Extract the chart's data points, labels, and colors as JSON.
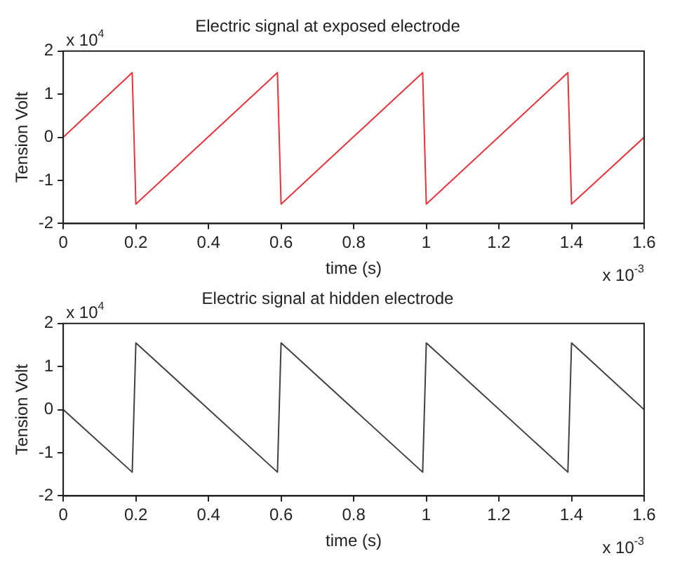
{
  "chart_data": [
    {
      "type": "line",
      "title": "Electric signal at exposed electrode",
      "xlabel": "time (s)",
      "ylabel": "Tension Volt",
      "annotations": [
        "x 10$^{4}$",
        "x 10$^{-3}$"
      ],
      "x": [
        0,
        0.19,
        0.2,
        0.59,
        0.6,
        0.99,
        1.0,
        1.39,
        1.4,
        1.6
      ],
      "series": [
        {
          "color": "#e8323c",
          "values": [
            0,
            1.5,
            -1.55,
            1.5,
            -1.55,
            1.5,
            -1.55,
            1.5,
            -1.55,
            0
          ]
        }
      ],
      "xlim": [
        0,
        1.6
      ],
      "xticks": [
        0,
        0.2,
        0.4,
        0.6,
        0.8,
        1,
        1.2,
        1.4,
        1.6
      ],
      "ylim": [
        -2,
        2
      ],
      "yticks": [
        -2,
        -1,
        0,
        1,
        2
      ],
      "grid": false,
      "legend": false,
      "marker": "none",
      "line_style": "solid"
    },
    {
      "type": "line",
      "title": "Electric signal at hidden electrode",
      "xlabel": "time (s)",
      "ylabel": "Tension Volt",
      "annotations": [
        "x 10$^{4}$",
        "x 10$^{-3}$"
      ],
      "x": [
        0,
        0.19,
        0.2,
        0.59,
        0.6,
        0.99,
        1.0,
        1.39,
        1.4,
        1.6
      ],
      "series": [
        {
          "color": "#404040",
          "values": [
            0,
            -1.45,
            1.55,
            -1.45,
            1.55,
            -1.45,
            1.55,
            -1.45,
            1.55,
            0
          ]
        }
      ],
      "xlim": [
        0,
        1.6
      ],
      "xticks": [
        0,
        0.2,
        0.4,
        0.6,
        0.8,
        1,
        1.2,
        1.4,
        1.6
      ],
      "ylim": [
        -2,
        2
      ],
      "yticks": [
        -2,
        -1,
        0,
        1,
        2
      ],
      "grid": false,
      "legend": false,
      "marker": "none",
      "line_style": "solid"
    }
  ]
}
